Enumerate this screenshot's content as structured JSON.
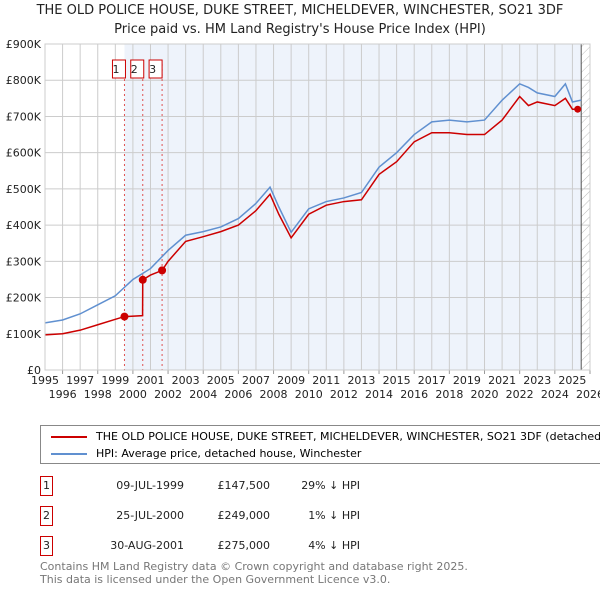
{
  "chart_data": {
    "type": "line",
    "title": "THE OLD POLICE HOUSE, DUKE STREET, MICHELDEVER, WINCHESTER, SO21 3DF",
    "subtitle": "Price paid vs. HM Land Registry's House Price Index (HPI)",
    "xlim": [
      1995,
      2026
    ],
    "ylim": [
      0,
      900000
    ],
    "yticks": [
      {
        "v": 0,
        "label": "£0"
      },
      {
        "v": 100000,
        "label": "£100K"
      },
      {
        "v": 200000,
        "label": "£200K"
      },
      {
        "v": 300000,
        "label": "£300K"
      },
      {
        "v": 400000,
        "label": "£400K"
      },
      {
        "v": 500000,
        "label": "£500K"
      },
      {
        "v": 600000,
        "label": "£600K"
      },
      {
        "v": 700000,
        "label": "£700K"
      },
      {
        "v": 800000,
        "label": "£800K"
      },
      {
        "v": 900000,
        "label": "£900K"
      }
    ],
    "xticks": [
      "1995",
      "1996",
      "1997",
      "1998",
      "1999",
      "2000",
      "2001",
      "2002",
      "2003",
      "2004",
      "2005",
      "2006",
      "2007",
      "2008",
      "2009",
      "2010",
      "2011",
      "2012",
      "2013",
      "2014",
      "2015",
      "2016",
      "2017",
      "2018",
      "2019",
      "2020",
      "2021",
      "2022",
      "2023",
      "2024",
      "2025",
      "2026"
    ],
    "series": [
      {
        "name": "THE OLD POLICE HOUSE, DUKE STREET, MICHELDEVER, WINCHESTER, SO21 3DF (detached house)",
        "color": "#cc0000",
        "x": [
          1995,
          1996,
          1997,
          1998,
          1999,
          1999.52,
          2000.55,
          2000.56,
          2001,
          2001.66,
          2002,
          2003,
          2004,
          2005,
          2006,
          2007,
          2007.8,
          2008.3,
          2009,
          2010,
          2011,
          2012,
          2013,
          2014,
          2015,
          2016,
          2017,
          2018,
          2019,
          2020,
          2021,
          2022,
          2022.5,
          2023,
          2024,
          2024.6,
          2025,
          2025.5
        ],
        "y": [
          97000,
          100000,
          110000,
          125000,
          140000,
          147500,
          150000,
          249000,
          262000,
          275000,
          300000,
          355000,
          368000,
          382000,
          400000,
          440000,
          485000,
          430000,
          365000,
          430000,
          455000,
          465000,
          470000,
          540000,
          575000,
          630000,
          655000,
          655000,
          650000,
          650000,
          690000,
          755000,
          730000,
          740000,
          730000,
          750000,
          720000,
          720000
        ]
      },
      {
        "name": "HPI: Average price, detached house, Winchester",
        "color": "#6090d0",
        "x": [
          1995,
          1996,
          1997,
          1998,
          1999,
          2000,
          2001,
          2002,
          2003,
          2004,
          2005,
          2006,
          2007,
          2007.8,
          2008.3,
          2009,
          2010,
          2011,
          2012,
          2013,
          2014,
          2015,
          2016,
          2017,
          2018,
          2019,
          2020,
          2021,
          2022,
          2022.5,
          2023,
          2024,
          2024.6,
          2025,
          2025.5
        ],
        "y": [
          130000,
          138000,
          155000,
          180000,
          205000,
          250000,
          280000,
          330000,
          372000,
          382000,
          395000,
          418000,
          460000,
          505000,
          450000,
          380000,
          445000,
          465000,
          475000,
          490000,
          560000,
          600000,
          650000,
          685000,
          690000,
          685000,
          690000,
          745000,
          790000,
          780000,
          765000,
          755000,
          790000,
          740000,
          745000
        ]
      }
    ],
    "sales": [
      {
        "id": "1",
        "x": 1999.52,
        "y": 147500,
        "date": "09-JUL-1999",
        "price": "£147,500",
        "delta": "29% ↓ HPI"
      },
      {
        "id": "2",
        "x": 2000.56,
        "y": 249000,
        "date": "25-JUL-2000",
        "price": "£249,000",
        "delta": "1% ↓ HPI"
      },
      {
        "id": "3",
        "x": 2001.66,
        "y": 275000,
        "date": "30-AUG-2001",
        "price": "£275,000",
        "delta": "4% ↓ HPI"
      }
    ],
    "legend_position": "bottom"
  },
  "footer": [
    "Contains HM Land Registry data © Crown copyright and database right 2025.",
    "This data is licensed under the Open Government Licence v3.0."
  ]
}
